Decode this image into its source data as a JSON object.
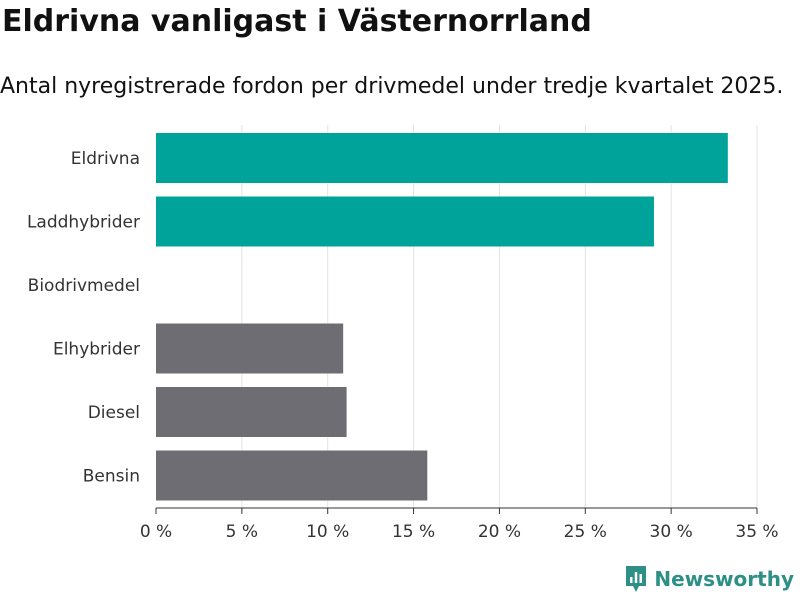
{
  "header": {
    "title": "Eldrivna vanligast i Västernorrland",
    "subtitle": "Antal nyregistrerade fordon per drivmedel under tredje kvartalet 2025."
  },
  "chart_data": {
    "type": "bar",
    "orientation": "horizontal",
    "categories": [
      "Eldrivna",
      "Laddhybrider",
      "Biodrivmedel",
      "Elhybrider",
      "Diesel",
      "Bensin"
    ],
    "values": [
      33.3,
      29.0,
      0,
      10.9,
      11.1,
      15.8
    ],
    "colors": [
      "#00a39a",
      "#00a39a",
      "#00a39a",
      "#6e6d73",
      "#6e6d73",
      "#6e6d73"
    ],
    "xlim": [
      0,
      35
    ],
    "xticks": [
      0,
      5,
      10,
      15,
      20,
      25,
      30,
      35
    ],
    "tick_labels": [
      "0 %",
      "5 %",
      "10 %",
      "15 %",
      "20 %",
      "25 %",
      "30 %",
      "35 %"
    ],
    "grid": true,
    "title": "Eldrivna vanligast i Västernorrland",
    "xlabel": "",
    "ylabel": ""
  },
  "brand": {
    "name": "Newsworthy",
    "color": "#2d8f86"
  }
}
